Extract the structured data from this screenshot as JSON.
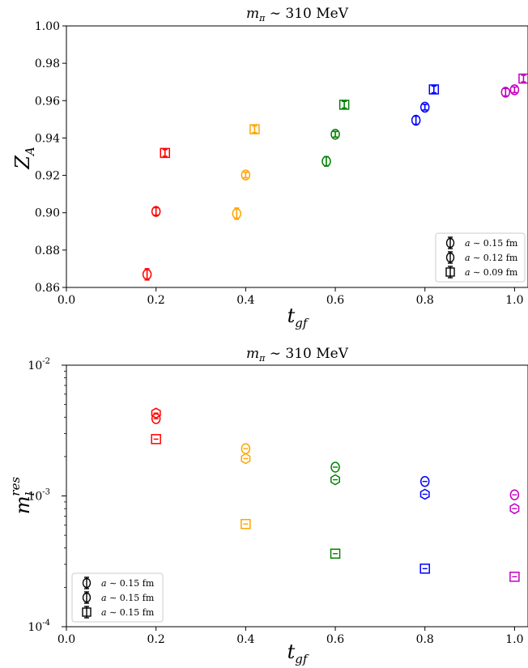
{
  "chart_data": [
    {
      "type": "scatter",
      "title": "m_π ∼ 310 MeV",
      "xlabel": "t_gf",
      "ylabel": "Z_A",
      "xlim": [
        0.0,
        1.03
      ],
      "ylim": [
        0.86,
        1.0
      ],
      "xticks": [
        "0.0",
        "0.2",
        "0.4",
        "0.6",
        "0.8",
        "1.0"
      ],
      "yticks": [
        "0.86",
        "0.88",
        "0.90",
        "0.92",
        "0.94",
        "0.96",
        "0.98",
        "1.00"
      ],
      "legend_position": "bottom-right",
      "legend": [
        "a ∼ 0.15 fm",
        "a ∼ 0.12 fm",
        "a ∼ 0.09 fm"
      ],
      "colors": [
        "#ff0000",
        "#ffa500",
        "#008000",
        "#0000ff",
        "#c000c0"
      ],
      "series": [
        {
          "name": "a ∼ 0.15 fm",
          "marker": "circle",
          "x": [
            0.18,
            0.38,
            0.58,
            0.78,
            0.98
          ],
          "y": [
            0.867,
            0.8995,
            0.9275,
            0.9495,
            0.9645
          ],
          "err": [
            0.003,
            0.003,
            0.0025,
            0.0022,
            0.002
          ]
        },
        {
          "name": "a ∼ 0.12 fm",
          "marker": "circle",
          "x": [
            0.2,
            0.4,
            0.6,
            0.8,
            1.0
          ],
          "y": [
            0.9007,
            0.9202,
            0.942,
            0.9565,
            0.9658
          ],
          "err": [
            0.002,
            0.0015,
            0.0015,
            0.0015,
            0.0015
          ]
        },
        {
          "name": "a ∼ 0.09 fm",
          "marker": "square",
          "x": [
            0.22,
            0.42,
            0.62,
            0.82,
            1.02
          ],
          "y": [
            0.932,
            0.9447,
            0.9578,
            0.966,
            0.9718
          ],
          "err": [
            0.0018,
            0.0018,
            0.0018,
            0.0018,
            0.0018
          ]
        }
      ]
    },
    {
      "type": "scatter",
      "title": "m_π ∼ 310 MeV",
      "xlabel": "t_gf",
      "ylabel": "m_l^res",
      "yscale": "log",
      "xlim": [
        0.0,
        1.03
      ],
      "ylim": [
        0.0001,
        0.01
      ],
      "xticks": [
        "0.0",
        "0.2",
        "0.4",
        "0.6",
        "0.8",
        "1.0"
      ],
      "yticks": [
        "10^-4",
        "10^-3",
        "10^-2"
      ],
      "legend_position": "bottom-left",
      "legend": [
        "a ∼ 0.15 fm",
        "a ∼ 0.15 fm",
        "a ∼ 0.15 fm"
      ],
      "colors": [
        "#ff0000",
        "#ffa500",
        "#008000",
        "#0000ff",
        "#c000c0"
      ],
      "series": [
        {
          "name": "a ∼ 0.15 fm",
          "marker": "hexagon",
          "x": [
            0.2,
            0.4,
            0.6,
            0.8,
            1.0
          ],
          "y": [
            0.0043,
            0.00193,
            0.00133,
            0.00103,
            0.0008
          ]
        },
        {
          "name": "a ∼ 0.15 fm",
          "marker": "circle",
          "x": [
            0.2,
            0.4,
            0.6,
            0.8,
            1.0
          ],
          "y": [
            0.0039,
            0.0023,
            0.00166,
            0.00129,
            0.00102
          ]
        },
        {
          "name": "a ∼ 0.15 fm",
          "marker": "square",
          "x": [
            0.2,
            0.4,
            0.6,
            0.8,
            1.0
          ],
          "y": [
            0.00272,
            0.00061,
            0.000362,
            0.000278,
            0.000241
          ]
        }
      ]
    }
  ]
}
